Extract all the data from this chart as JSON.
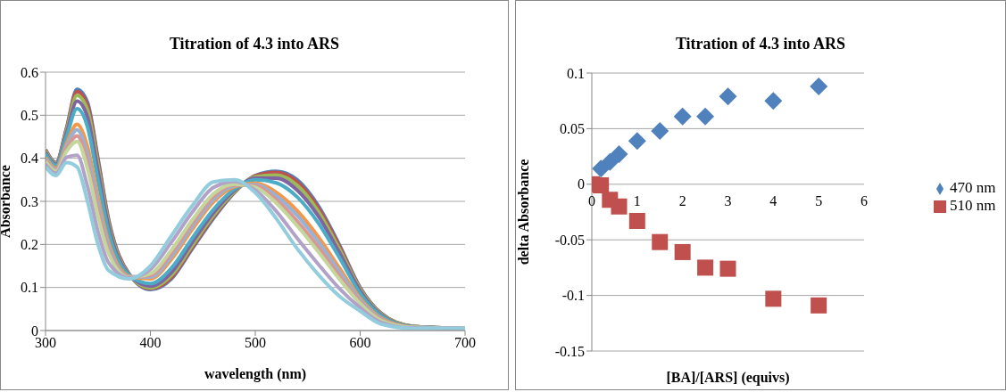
{
  "chart_data": [
    {
      "type": "line",
      "title": "Titration of 4.3 into ARS",
      "xlabel": "wavelength (nm)",
      "ylabel": "Absorbance",
      "x": [
        300,
        310,
        320,
        330,
        340,
        350,
        360,
        380,
        400,
        420,
        440,
        460,
        480,
        500,
        520,
        540,
        560,
        580,
        600,
        620,
        650,
        700
      ],
      "xlim": [
        300,
        700
      ],
      "xticks": [
        300,
        400,
        500,
        600,
        700
      ],
      "ylim": [
        0,
        0.6
      ],
      "yticks": [
        0,
        0.1,
        0.2,
        0.3,
        0.4,
        0.5,
        0.6
      ],
      "grid": "y",
      "legend": false,
      "marker": "none",
      "line_style": "solid",
      "series": [
        {
          "color": "#4f81bd",
          "values": [
            0.42,
            0.39,
            0.47,
            0.56,
            0.53,
            0.4,
            0.26,
            0.13,
            0.095,
            0.12,
            0.19,
            0.26,
            0.32,
            0.36,
            0.37,
            0.35,
            0.29,
            0.2,
            0.1,
            0.04,
            0.01,
            0.005
          ]
        },
        {
          "color": "#c0504d",
          "values": [
            0.419,
            0.389,
            0.468,
            0.555,
            0.523,
            0.394,
            0.256,
            0.13,
            0.097,
            0.123,
            0.193,
            0.263,
            0.321,
            0.359,
            0.367,
            0.345,
            0.285,
            0.196,
            0.098,
            0.039,
            0.01,
            0.005
          ]
        },
        {
          "color": "#9bbb59",
          "values": [
            0.417,
            0.388,
            0.464,
            0.546,
            0.512,
            0.384,
            0.25,
            0.129,
            0.099,
            0.128,
            0.198,
            0.267,
            0.322,
            0.357,
            0.361,
            0.337,
            0.277,
            0.19,
            0.096,
            0.038,
            0.01,
            0.005
          ]
        },
        {
          "color": "#8064a2",
          "values": [
            0.414,
            0.386,
            0.458,
            0.533,
            0.496,
            0.37,
            0.242,
            0.129,
            0.103,
            0.135,
            0.205,
            0.273,
            0.325,
            0.354,
            0.354,
            0.326,
            0.266,
            0.182,
            0.092,
            0.036,
            0.009,
            0.005
          ]
        },
        {
          "color": "#4bacc6",
          "values": [
            0.41,
            0.383,
            0.45,
            0.515,
            0.473,
            0.35,
            0.23,
            0.128,
            0.109,
            0.145,
            0.215,
            0.281,
            0.328,
            0.35,
            0.343,
            0.31,
            0.25,
            0.17,
            0.086,
            0.034,
            0.009,
            0.005
          ]
        },
        {
          "color": "#f79646",
          "values": [
            0.402,
            0.377,
            0.434,
            0.479,
            0.427,
            0.31,
            0.206,
            0.126,
            0.12,
            0.165,
            0.235,
            0.298,
            0.334,
            0.342,
            0.321,
            0.278,
            0.218,
            0.146,
            0.075,
            0.029,
            0.008,
            0.005
          ]
        },
        {
          "color": "#95b3d7",
          "values": [
            0.399,
            0.374,
            0.428,
            0.466,
            0.41,
            0.296,
            0.198,
            0.125,
            0.124,
            0.172,
            0.242,
            0.304,
            0.336,
            0.339,
            0.313,
            0.267,
            0.207,
            0.138,
            0.071,
            0.027,
            0.007,
            0.005
          ]
        },
        {
          "color": "#d99694",
          "values": [
            0.396,
            0.372,
            0.422,
            0.452,
            0.392,
            0.28,
            0.188,
            0.124,
            0.128,
            0.18,
            0.25,
            0.311,
            0.338,
            0.336,
            0.304,
            0.254,
            0.194,
            0.128,
            0.067,
            0.025,
            0.007,
            0.005
          ]
        },
        {
          "color": "#c3d69b",
          "values": [
            0.393,
            0.37,
            0.416,
            0.439,
            0.376,
            0.266,
            0.18,
            0.123,
            0.132,
            0.187,
            0.257,
            0.317,
            0.34,
            0.333,
            0.296,
            0.243,
            0.183,
            0.12,
            0.063,
            0.023,
            0.007,
            0.005
          ]
        },
        {
          "color": "#b3a2c7",
          "values": [
            0.386,
            0.365,
            0.402,
            0.407,
            0.335,
            0.23,
            0.158,
            0.122,
            0.142,
            0.205,
            0.275,
            0.332,
            0.346,
            0.326,
            0.277,
            0.214,
            0.154,
            0.098,
            0.053,
            0.019,
            0.006,
            0.005
          ]
        },
        {
          "color": "#93cddd",
          "values": [
            0.38,
            0.36,
            0.39,
            0.38,
            0.3,
            0.2,
            0.14,
            0.12,
            0.15,
            0.22,
            0.29,
            0.345,
            0.35,
            0.32,
            0.26,
            0.19,
            0.13,
            0.08,
            0.045,
            0.015,
            0.005,
            0.005
          ]
        }
      ]
    },
    {
      "type": "scatter",
      "title": "Titration of 4.3 into ARS",
      "xlabel": "[BA]/[ARS] (equivs)",
      "ylabel": "delta Absorbance",
      "xlim": [
        0,
        6
      ],
      "xticks": [
        0,
        1,
        2,
        3,
        4,
        5,
        6
      ],
      "ylim": [
        -0.15,
        0.1
      ],
      "yticks": [
        -0.15,
        -0.1,
        -0.05,
        0,
        0.05,
        0.1
      ],
      "grid": "y",
      "legend": "right",
      "series": [
        {
          "name": "470 nm",
          "color": "#4f81bd",
          "marker": "diamond",
          "x": [
            0.2,
            0.4,
            0.6,
            1,
            1.5,
            2,
            2.5,
            3,
            4,
            5
          ],
          "values": [
            0.014,
            0.02,
            0.027,
            0.039,
            0.048,
            0.061,
            0.061,
            0.079,
            0.075,
            0.088
          ]
        },
        {
          "name": "510 nm",
          "color": "#c0504d",
          "marker": "square",
          "x": [
            0,
            0.2,
            0.4,
            0.6,
            1,
            1.5,
            2,
            2.5,
            3,
            4,
            5
          ],
          "values": [
            0,
            -0.001,
            -0.014,
            -0.02,
            -0.033,
            -0.052,
            -0.061,
            -0.075,
            -0.076,
            -0.103,
            -0.109
          ]
        }
      ]
    }
  ]
}
